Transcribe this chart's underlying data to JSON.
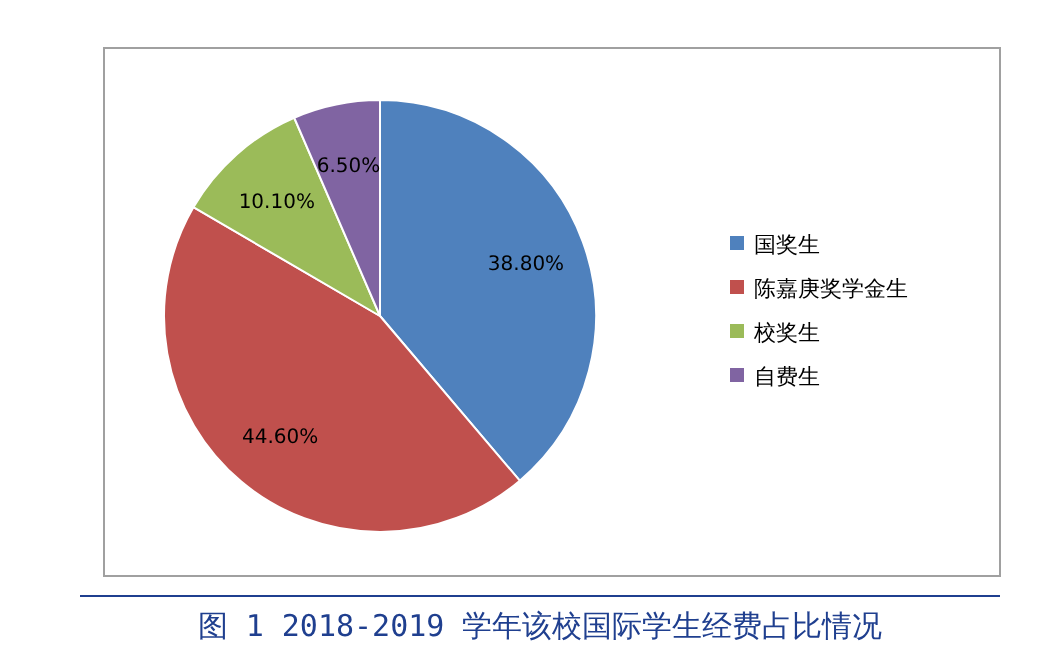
{
  "chart_data": {
    "type": "pie",
    "title": "图 1 2018-2019 学年该校国际学生经费占比情况",
    "categories": [
      "国奖生",
      "陈嘉庚奖学金生",
      "校奖生",
      "自费生"
    ],
    "values": [
      38.8,
      44.6,
      10.1,
      6.5
    ],
    "value_labels": [
      "38.80%",
      "44.60%",
      "10.10%",
      "6.50%"
    ],
    "colors": [
      "#4f81bd",
      "#c0504d",
      "#9bbb59",
      "#8064a2"
    ],
    "legend": "right"
  }
}
